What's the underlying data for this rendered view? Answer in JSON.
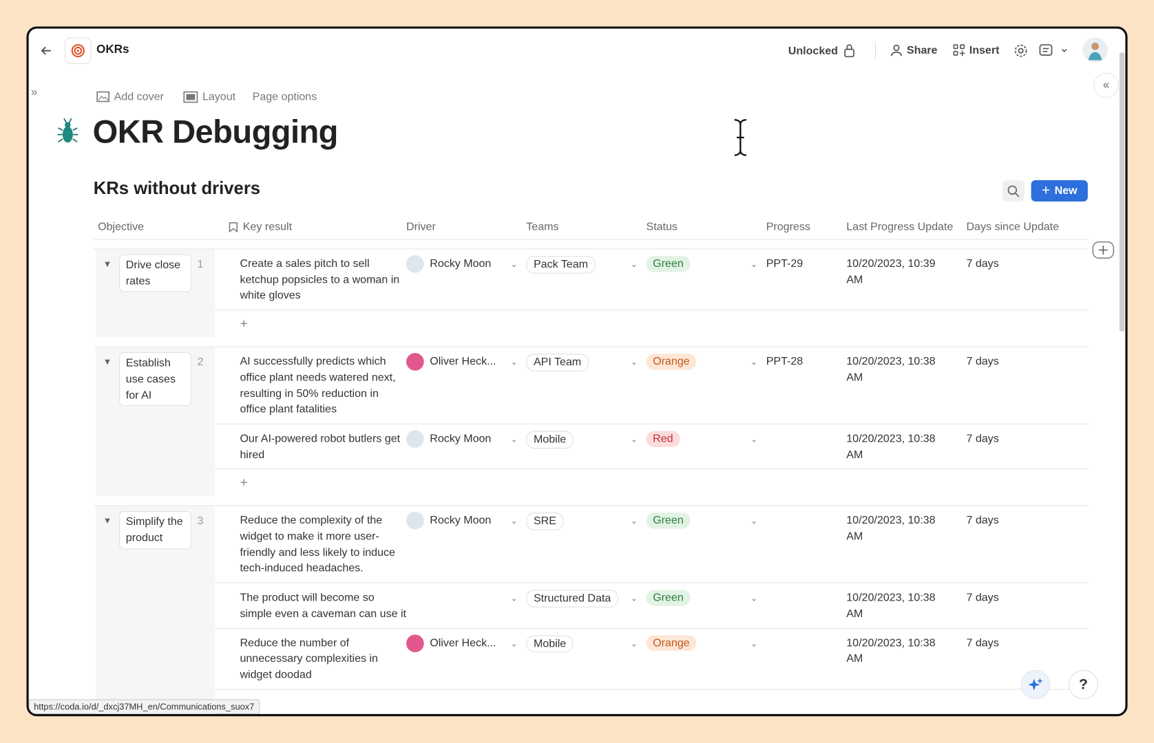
{
  "topbar": {
    "doc_name": "OKRs",
    "lock": "Unlocked",
    "share": "Share",
    "insert": "Insert"
  },
  "page_options": [
    "Add cover",
    "Layout",
    "Page options"
  ],
  "title": "OKR Debugging",
  "table": {
    "title": "KRs without drivers",
    "new_button": "New",
    "columns": [
      "Objective",
      "Key result",
      "Driver",
      "Teams",
      "Status",
      "Progress",
      "Last Progress Update",
      "Days since Update"
    ],
    "status_colors": {
      "Green": {
        "bg": "#e2f3e5",
        "fg": "#2e7d3e"
      },
      "Orange": {
        "bg": "#fde6d6",
        "fg": "#c0591b"
      },
      "Red": {
        "bg": "#fbdcdc",
        "fg": "#c0302f"
      }
    },
    "groups": [
      {
        "objective": "Drive close rates",
        "number": 1,
        "rows": [
          {
            "key_result": "Create a sales pitch to sell ketchup popsicles to a woman in white gloves",
            "driver": "Rocky Moon",
            "team": "Pack Team",
            "status": "Green",
            "progress": "PPT-29",
            "last_update": "10/20/2023, 10:39 AM",
            "days": "7 days"
          }
        ]
      },
      {
        "objective": "Establish use cases for AI",
        "number": 2,
        "rows": [
          {
            "key_result": "AI successfully predicts which office plant needs watered next, resulting in 50% reduction in office plant fatalities",
            "driver": "Oliver Heck...",
            "team": "API Team",
            "status": "Orange",
            "progress": "PPT-28",
            "last_update": "10/20/2023, 10:38 AM",
            "days": "7 days"
          },
          {
            "key_result": "Our AI-powered robot butlers get hired",
            "driver": "Rocky Moon",
            "team": "Mobile",
            "status": "Red",
            "progress": null,
            "last_update": "10/20/2023, 10:38 AM",
            "days": "7 days"
          }
        ]
      },
      {
        "objective": "Simplify the product",
        "number": 3,
        "rows": [
          {
            "key_result": "Reduce the complexity of the widget to make it more user-friendly and less likely to induce tech-induced headaches.",
            "driver": "Rocky Moon",
            "team": "SRE",
            "status": "Green",
            "progress": null,
            "last_update": "10/20/2023, 10:38 AM",
            "days": "7 days"
          },
          {
            "key_result": "The product will become so simple even a caveman can use it",
            "driver": null,
            "team": "Structured Data",
            "status": "Green",
            "progress": null,
            "last_update": "10/20/2023, 10:38 AM",
            "days": "7 days"
          },
          {
            "key_result": "Reduce the number of unnecessary complexities in widget doodad",
            "driver": "Oliver Heck...",
            "team": "Mobile",
            "status": "Orange",
            "progress": null,
            "last_update": "10/20/2023, 10:38 AM",
            "days": "7 days"
          }
        ]
      }
    ]
  },
  "status_url": "https://coda.io/d/_dxcj37MH_en/Communications_suox7"
}
